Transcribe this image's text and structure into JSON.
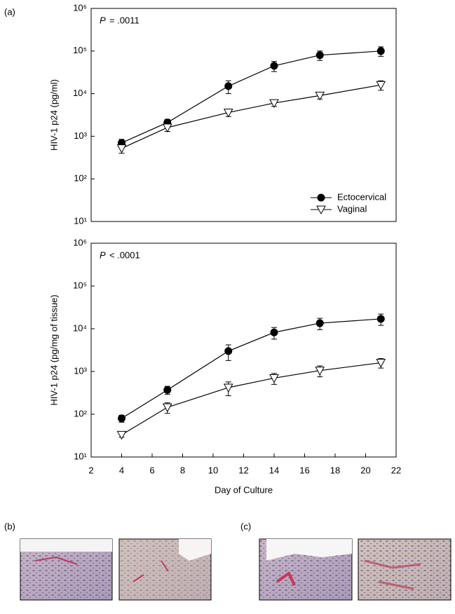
{
  "panel_labels": {
    "a": "(a)",
    "b": "(b)",
    "c": "(c)"
  },
  "chart_data": [
    {
      "type": "line",
      "annotation_symbol": "P",
      "annotation": "= .0011",
      "y_label": "HIV-1 p24 (pg/ml)",
      "log_y": true,
      "legend": "lower right",
      "x": [
        4,
        7,
        11,
        14,
        17,
        21
      ],
      "xlim": [
        2,
        22
      ],
      "ylim": [
        10,
        1000000
      ],
      "yticks": [
        {
          "value": 10,
          "label": "10¹"
        },
        {
          "value": 100,
          "label": "10²"
        },
        {
          "value": 1000,
          "label": "10³"
        },
        {
          "value": 10000,
          "label": "10⁴"
        },
        {
          "value": 100000,
          "label": "10⁵"
        },
        {
          "value": 1000000,
          "label": "10⁶"
        }
      ],
      "series": [
        {
          "name": "Ectocervical",
          "color": "#000000",
          "marker": "circle",
          "marker_fill": "#000000",
          "values": [
            700,
            2100,
            15000,
            45000,
            80000,
            100000
          ],
          "errors": [
            150,
            400,
            5000,
            12000,
            20000,
            25000
          ]
        },
        {
          "name": "Vaginal",
          "color": "#000000",
          "marker": "triangle-down",
          "marker_fill": "#ffffff",
          "values": [
            520,
            1600,
            3600,
            6000,
            9000,
            16000
          ],
          "errors": [
            120,
            300,
            700,
            1000,
            1500,
            4000
          ]
        }
      ]
    },
    {
      "type": "line",
      "annotation_symbol": "P",
      "annotation": "< .0001",
      "y_label": "HIV-1 p24 (pg/mg of tissue)",
      "x_label": "Day of Culture",
      "log_y": true,
      "x": [
        4,
        7,
        11,
        14,
        17,
        21
      ],
      "xlim": [
        2,
        22
      ],
      "xticks": [
        2,
        4,
        6,
        8,
        10,
        12,
        14,
        16,
        18,
        20,
        22
      ],
      "ylim": [
        10,
        1000000
      ],
      "yticks": [
        {
          "value": 10,
          "label": "10¹"
        },
        {
          "value": 100,
          "label": "10²"
        },
        {
          "value": 1000,
          "label": "10³"
        },
        {
          "value": 10000,
          "label": "10⁴"
        },
        {
          "value": 100000,
          "label": "10⁵"
        },
        {
          "value": 1000000,
          "label": "10⁶"
        }
      ],
      "series": [
        {
          "name": "Ectocervical",
          "color": "#000000",
          "marker": "circle",
          "marker_fill": "#000000",
          "values": [
            80,
            370,
            3000,
            8200,
            13500,
            17000
          ],
          "errors": [
            15,
            80,
            1200,
            2500,
            4000,
            5000
          ]
        },
        {
          "name": "Vaginal",
          "color": "#000000",
          "marker": "triangle-down",
          "marker_fill": "#ffffff",
          "values": [
            33,
            145,
            420,
            700,
            1050,
            1600
          ],
          "errors": [
            4,
            40,
            150,
            200,
            300,
            400
          ]
        }
      ]
    }
  ]
}
